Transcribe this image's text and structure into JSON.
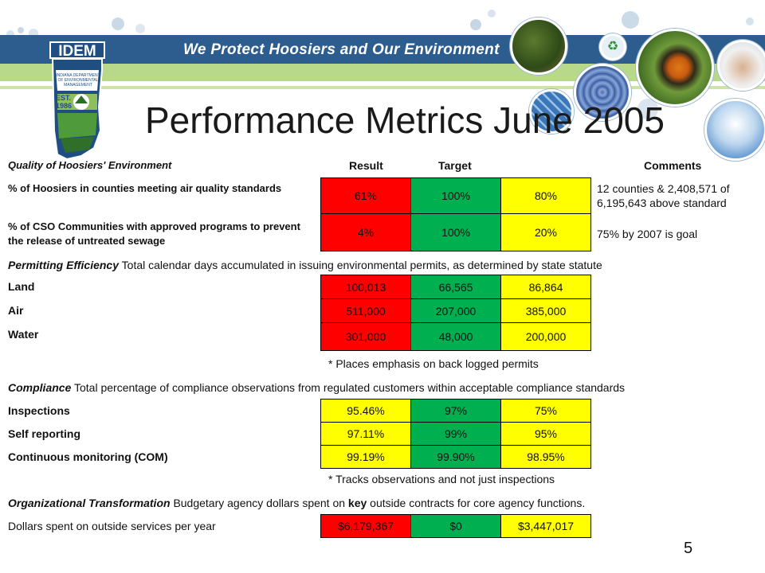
{
  "banner": {
    "tagline": "We Protect Hoosiers and Our Environment",
    "logo_text": "IDEM",
    "logo_est": "EST.",
    "logo_year": "1986",
    "logo_subtext": "INDIANA DEPARTMENT OF ENVIRONMENTAL MANAGEMENT"
  },
  "title": "Performance Metrics June 2005",
  "header": {
    "section": "Quality of Hoosiers' Environment",
    "result": "Result",
    "target": "Target",
    "comments": "Comments"
  },
  "quality_rows": [
    {
      "label": "% of Hoosiers in counties meeting air quality standards",
      "result": "61%",
      "target": "100%",
      "third": "80%",
      "comment": "12 counties & 2,408,571 of 6,195,643 above standard"
    },
    {
      "label": "% of CSO Communities with approved programs to prevent the release of untreated sewage",
      "result": "4%",
      "target": "100%",
      "third": "20%",
      "comment": "75% by 2007 is goal"
    }
  ],
  "permitting": {
    "heading": "Permitting Efficiency",
    "description": "Total calendar days accumulated in issuing environmental permits, as determined by state statute",
    "rows": [
      {
        "label": "Land",
        "result": "100,013",
        "target": "66,565",
        "third": "86,864"
      },
      {
        "label": "Air",
        "result": "511,000",
        "target": "207,000",
        "third": "385,000"
      },
      {
        "label": "Water",
        "result": "301,000",
        "target": "48,000",
        "third": "200,000"
      }
    ],
    "note": "* Places emphasis on back logged permits"
  },
  "compliance": {
    "heading": "Compliance",
    "description": "Total percentage of compliance observations from regulated customers within acceptable compliance standards",
    "rows": [
      {
        "label": "Inspections",
        "result": "95.46%",
        "target": "97%",
        "third": "75%"
      },
      {
        "label": "Self reporting",
        "result": "97.11%",
        "target": "99%",
        "third": "95%"
      },
      {
        "label": "Continuous monitoring (COM)",
        "result": "99.19%",
        "target": "99.90%",
        "third": "98.95%"
      }
    ],
    "note": "* Tracks observations and not just inspections"
  },
  "transformation": {
    "heading": "Organizational Transformation",
    "desc_before": "Budgetary agency dollars spent on ",
    "desc_key": "key",
    "desc_after": " outside contracts for core agency functions.",
    "row": {
      "label": "Dollars spent on outside services per year",
      "result": "$6,179,367",
      "target": "$0",
      "third": "$3,447,017"
    }
  },
  "page_number": "5",
  "colors": {
    "red": "#ff0000",
    "green": "#00b050",
    "yellow": "#ffff00",
    "banner_blue": "#2d5d8f",
    "banner_green": "#b9d98a"
  }
}
